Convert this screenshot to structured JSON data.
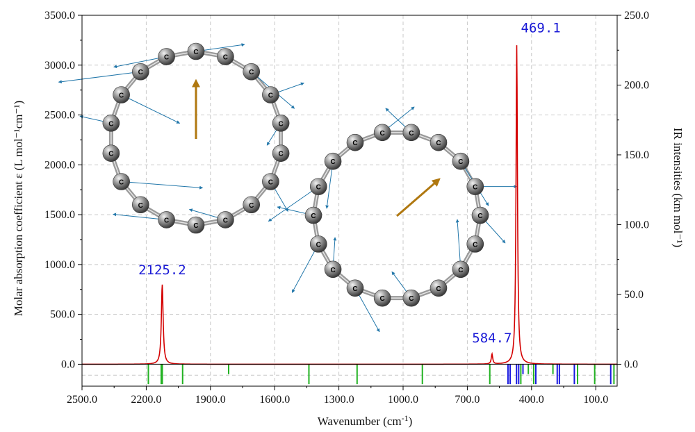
{
  "chart_data": {
    "type": "line",
    "xlabel": "Wavenumber (cm",
    "xlabel_sup": "-1",
    "xlabel_end": ")",
    "ylabel": "Molar absorption coefficient  ε (L mol⁻¹cm⁻¹)",
    "y2label": "IR intensities (km mol⁻¹)",
    "xlim": [
      2500,
      0
    ],
    "ylim": [
      -220,
      3500
    ],
    "y2lim": [
      -15.714,
      250
    ],
    "grid": true,
    "x_ticks": [
      "2500.0",
      "2200.0",
      "1900.0",
      "1600.0",
      "1300.0",
      "1000.0",
      "700.0",
      "400.0",
      "100.0"
    ],
    "x_tick_values": [
      2500,
      2200,
      1900,
      1600,
      1300,
      1000,
      700,
      400,
      100
    ],
    "y_ticks": [
      "0.0",
      "500.0",
      "1000.0",
      "1500.0",
      "2000.0",
      "2500.0",
      "3000.0",
      "3500.0"
    ],
    "y_tick_values": [
      0,
      500,
      1000,
      1500,
      2000,
      2500,
      3000,
      3500
    ],
    "y2_ticks": [
      "0.0",
      "50.0",
      "100.0",
      "150.0",
      "200.0",
      "250.0"
    ],
    "y2_tick_values": [
      0,
      50,
      100,
      150,
      200,
      250
    ],
    "spectrum_color": "#d40000",
    "peaks": [
      {
        "x": 2125.2,
        "height": 800,
        "width": 5
      },
      {
        "x": 584.7,
        "height": 100,
        "width": 4
      },
      {
        "x": 469.1,
        "height": 3200,
        "width": 4
      }
    ],
    "annotations": [
      "2125.2",
      "584.7",
      "469.1"
    ],
    "annotation_positions": [
      [
        2125.2,
        900
      ],
      [
        584.7,
        220
      ],
      [
        469.1,
        3330
      ]
    ],
    "stick_colors": {
      "green": "#22b222",
      "blue": "#1818e0"
    },
    "sticks": [
      {
        "x": 2190,
        "y": -200,
        "color": "green"
      },
      {
        "x": 2130,
        "y": -200,
        "color": "green"
      },
      {
        "x": 2125,
        "y": -200,
        "color": "green"
      },
      {
        "x": 2030,
        "y": -200,
        "color": "green"
      },
      {
        "x": 1815,
        "y": -100,
        "color": "green"
      },
      {
        "x": 1440,
        "y": -200,
        "color": "green"
      },
      {
        "x": 1215,
        "y": -200,
        "color": "green"
      },
      {
        "x": 910,
        "y": -200,
        "color": "green"
      },
      {
        "x": 595,
        "y": -200,
        "color": "green"
      },
      {
        "x": 510,
        "y": -200,
        "color": "blue"
      },
      {
        "x": 500,
        "y": -200,
        "color": "blue"
      },
      {
        "x": 470,
        "y": -200,
        "color": "blue"
      },
      {
        "x": 460,
        "y": -200,
        "color": "blue"
      },
      {
        "x": 450,
        "y": -200,
        "color": "green"
      },
      {
        "x": 440,
        "y": -100,
        "color": "blue"
      },
      {
        "x": 415,
        "y": -100,
        "color": "green"
      },
      {
        "x": 390,
        "y": -200,
        "color": "green"
      },
      {
        "x": 380,
        "y": -200,
        "color": "blue"
      },
      {
        "x": 300,
        "y": -100,
        "color": "green"
      },
      {
        "x": 280,
        "y": -200,
        "color": "blue"
      },
      {
        "x": 270,
        "y": -200,
        "color": "blue"
      },
      {
        "x": 200,
        "y": -200,
        "color": "blue"
      },
      {
        "x": 185,
        "y": -200,
        "color": "green"
      },
      {
        "x": 105,
        "y": -200,
        "color": "green"
      },
      {
        "x": 30,
        "y": -200,
        "color": "blue"
      },
      {
        "x": 15,
        "y": -200,
        "color": "green"
      }
    ],
    "atom_label": "C",
    "inset_colors": {
      "bond": "#9a9a9a",
      "vector": "#2277aa",
      "dipole": "#b07810",
      "atom": "#707070"
    }
  }
}
